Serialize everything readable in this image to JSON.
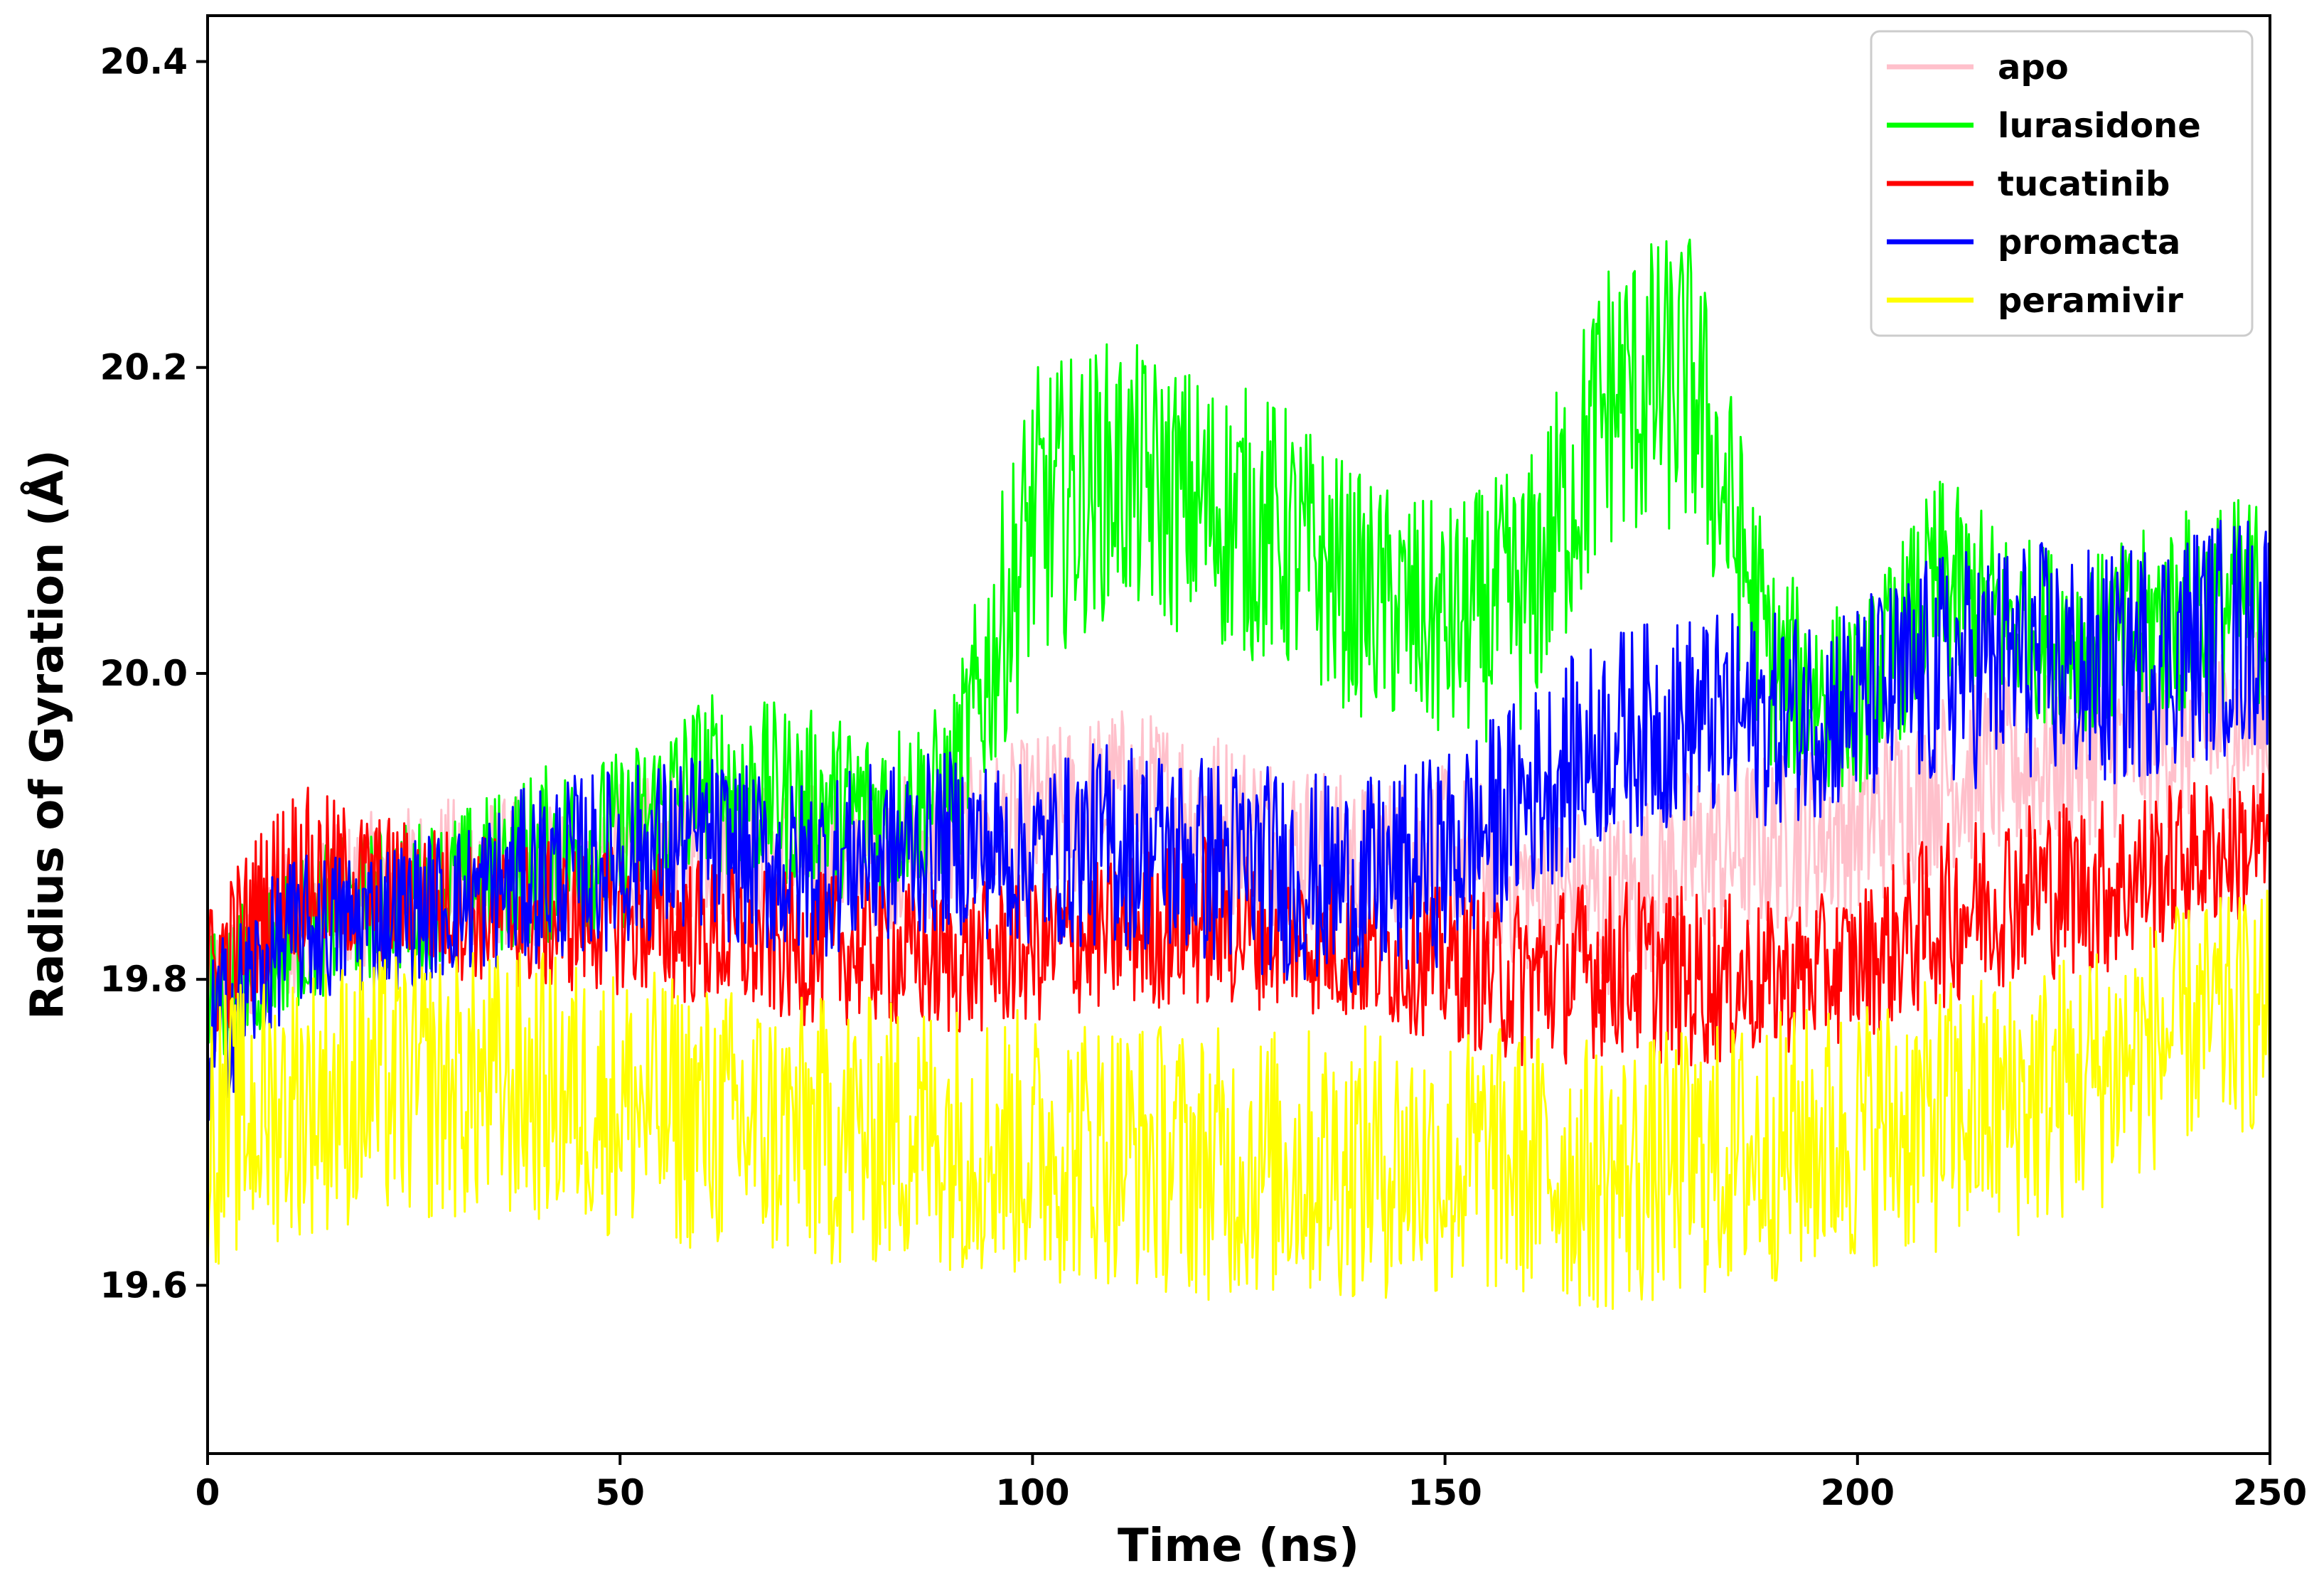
{
  "chart_data": {
    "type": "line",
    "xlabel": "Time (ns)",
    "ylabel": "Radius of Gyration (Å)",
    "xlim": [
      0,
      250
    ],
    "ylim": [
      19.49,
      20.43
    ],
    "xticks": [
      0,
      50,
      100,
      150,
      200,
      250
    ],
    "xtick_labels": [
      "0",
      "50",
      "100",
      "150",
      "200",
      "250"
    ],
    "yticks": [
      19.6,
      19.8,
      20.0,
      20.2,
      20.4
    ],
    "ytick_labels": [
      "19.6",
      "19.8",
      "20.0",
      "20.2",
      "20.4"
    ],
    "grid": false,
    "legend_position": "top-right",
    "x": [
      0,
      10,
      20,
      30,
      40,
      50,
      60,
      70,
      80,
      90,
      100,
      110,
      120,
      130,
      140,
      150,
      160,
      170,
      180,
      190,
      200,
      210,
      220,
      230,
      240,
      250
    ],
    "series": [
      {
        "name": "apo",
        "color": "#FFC0CB",
        "values": [
          19.78,
          19.84,
          19.86,
          19.87,
          19.87,
          19.88,
          19.89,
          19.88,
          19.88,
          19.89,
          19.9,
          19.92,
          19.91,
          19.89,
          19.88,
          19.89,
          19.86,
          19.85,
          19.88,
          19.89,
          19.9,
          19.93,
          19.94,
          19.95,
          19.96,
          19.97
        ],
        "amplitude": [
          0.05,
          0.05,
          0.05,
          0.05,
          0.05,
          0.05,
          0.05,
          0.05,
          0.05,
          0.05,
          0.06,
          0.06,
          0.06,
          0.06,
          0.05,
          0.05,
          0.06,
          0.06,
          0.06,
          0.06,
          0.06,
          0.06,
          0.06,
          0.06,
          0.06,
          0.06
        ]
      },
      {
        "name": "lurasidone",
        "color": "#00FF00",
        "values": [
          19.78,
          19.83,
          19.85,
          19.86,
          19.88,
          19.89,
          19.93,
          19.92,
          19.91,
          19.92,
          20.1,
          20.13,
          20.11,
          20.09,
          20.05,
          20.03,
          20.05,
          20.18,
          20.19,
          20.0,
          19.98,
          20.06,
          20.03,
          20.02,
          20.04,
          20.05
        ],
        "amplitude": [
          0.05,
          0.05,
          0.05,
          0.05,
          0.06,
          0.06,
          0.06,
          0.06,
          0.06,
          0.06,
          0.1,
          0.09,
          0.09,
          0.09,
          0.08,
          0.08,
          0.09,
          0.1,
          0.1,
          0.07,
          0.06,
          0.07,
          0.06,
          0.06,
          0.07,
          0.07
        ]
      },
      {
        "name": "tucatinib",
        "color": "#FF0000",
        "values": [
          19.8,
          19.87,
          19.86,
          19.85,
          19.84,
          19.84,
          19.83,
          19.82,
          19.82,
          19.81,
          19.82,
          19.83,
          19.84,
          19.83,
          19.82,
          19.81,
          19.8,
          19.81,
          19.8,
          19.8,
          19.81,
          19.84,
          19.86,
          19.86,
          19.88,
          19.89
        ],
        "amplitude": [
          0.05,
          0.06,
          0.05,
          0.05,
          0.05,
          0.05,
          0.05,
          0.05,
          0.05,
          0.05,
          0.05,
          0.05,
          0.06,
          0.05,
          0.05,
          0.05,
          0.06,
          0.06,
          0.06,
          0.05,
          0.05,
          0.06,
          0.06,
          0.06,
          0.05,
          0.05
        ]
      },
      {
        "name": "promacta",
        "color": "#0000FF",
        "values": [
          19.76,
          19.83,
          19.84,
          19.85,
          19.87,
          19.88,
          19.89,
          19.87,
          19.88,
          19.89,
          19.88,
          19.89,
          19.88,
          19.87,
          19.86,
          19.88,
          19.92,
          19.96,
          19.97,
          19.97,
          19.98,
          20.0,
          20.01,
          20.0,
          20.02,
          20.03
        ],
        "amplitude": [
          0.06,
          0.05,
          0.05,
          0.05,
          0.06,
          0.06,
          0.06,
          0.06,
          0.06,
          0.06,
          0.06,
          0.07,
          0.07,
          0.07,
          0.07,
          0.07,
          0.07,
          0.07,
          0.07,
          0.07,
          0.07,
          0.08,
          0.08,
          0.08,
          0.08,
          0.08
        ]
      },
      {
        "name": "peramivir",
        "color": "#FFFF00",
        "values": [
          19.7,
          19.72,
          19.73,
          19.73,
          19.73,
          19.72,
          19.71,
          19.7,
          19.7,
          19.7,
          19.69,
          19.69,
          19.68,
          19.68,
          19.68,
          19.68,
          19.68,
          19.67,
          19.68,
          19.69,
          19.7,
          19.71,
          19.72,
          19.74,
          19.77,
          19.78
        ],
        "amplitude": [
          0.09,
          0.09,
          0.09,
          0.09,
          0.09,
          0.09,
          0.09,
          0.09,
          0.09,
          0.09,
          0.09,
          0.09,
          0.09,
          0.09,
          0.09,
          0.09,
          0.09,
          0.09,
          0.09,
          0.09,
          0.09,
          0.09,
          0.09,
          0.09,
          0.08,
          0.08
        ]
      }
    ]
  }
}
